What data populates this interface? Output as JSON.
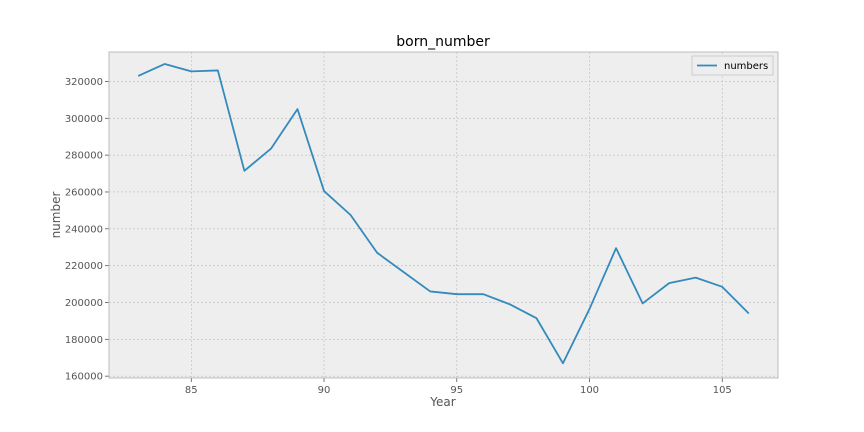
{
  "chart_data": {
    "type": "line",
    "title": "born_number",
    "xlabel": "Year",
    "ylabel": "number",
    "xlim": [
      81.9,
      107.1
    ],
    "ylim": [
      159000,
      336000
    ],
    "xticks": [
      85,
      90,
      95,
      100,
      105
    ],
    "yticks": [
      160000,
      180000,
      200000,
      220000,
      240000,
      260000,
      280000,
      300000,
      320000
    ],
    "grid": true,
    "legend_position": "top-right",
    "colors": {
      "line": "#348ABD",
      "plot_bg": "#EEEEEE",
      "grid": "#BBBBBB",
      "frame": "#BCBCBC"
    },
    "series": [
      {
        "name": "numbers",
        "x": [
          83,
          84,
          85,
          86,
          87,
          88,
          89,
          90,
          91,
          92,
          93,
          94,
          95,
          96,
          97,
          98,
          99,
          100,
          101,
          102,
          103,
          104,
          105,
          106
        ],
        "y": [
          323000,
          329500,
          325500,
          326000,
          271500,
          283500,
          305000,
          260500,
          247500,
          227000,
          216500,
          206000,
          204500,
          204500,
          199000,
          191500,
          167000,
          196500,
          229500,
          199500,
          210500,
          213500,
          208500,
          194000
        ]
      }
    ]
  }
}
